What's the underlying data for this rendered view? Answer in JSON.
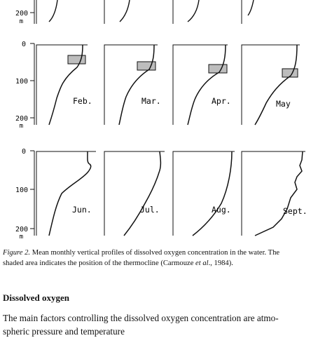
{
  "axis": {
    "unit": "m",
    "ticks": [
      "0",
      "100",
      "200"
    ]
  },
  "months": [
    "Feb.",
    "Mar.",
    "Apr.",
    "May",
    "Jun.",
    "Jul.",
    "Aug.",
    "Sept."
  ],
  "caption": {
    "label": "Figure 2.",
    "line1": " Mean monthly vertical profiles of dissolved oxygen concentration in the water. The",
    "line2_pre": "shaded area indicates the position of the thermocline (Carmouze ",
    "line2_etal": "et al",
    "line2_post": "., 1984)."
  },
  "section": {
    "heading": "Dissolved oxygen",
    "line1": "The main factors controlling the dissolved oxygen concentration are atmo-",
    "line2": "spheric pressure and temperature"
  }
}
